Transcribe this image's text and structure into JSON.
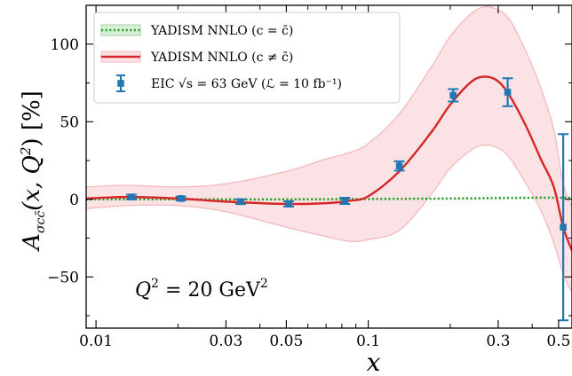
{
  "chart_data": {
    "type": "line",
    "xscale": "log",
    "xlim": [
      0.0092,
      0.56
    ],
    "ylim": [
      -83,
      125
    ],
    "xlabel": "x",
    "ylabel": "A_{σ^{cc̄}}(x, Q²) [%]",
    "ylabel_parts": {
      "main": "A",
      "sub": "σcc̄",
      "args": "(x, Q",
      "sup": "2",
      "end": ") [%]"
    },
    "x_ticks": [
      {
        "value": 0.01,
        "label": "0.01"
      },
      {
        "value": 0.03,
        "label": "0.03"
      },
      {
        "value": 0.05,
        "label": "0.05"
      },
      {
        "value": 0.1,
        "label": "0.1"
      },
      {
        "value": 0.3,
        "label": "0.3"
      },
      {
        "value": 0.5,
        "label": "0.5"
      }
    ],
    "y_ticks": [
      {
        "value": -50,
        "label": "−50"
      },
      {
        "value": 0,
        "label": "0"
      },
      {
        "value": 50,
        "label": "50"
      },
      {
        "value": 100,
        "label": "100"
      }
    ],
    "annotation": {
      "main": "Q",
      "sup": "2",
      "rest": " = 20 GeV",
      "sup2": "2"
    },
    "legend_position": "upper-left",
    "legend": [
      {
        "id": "sym",
        "label": "YADISM NNLO (c = c̄)"
      },
      {
        "id": "asym",
        "label": "YADISM NNLO (c ≠ c̄)"
      },
      {
        "id": "eic",
        "label": "EIC √s = 63 GeV (ℒ = 10 fb⁻¹)"
      }
    ],
    "series": [
      {
        "id": "sym",
        "name": "YADISM NNLO (c = c̄)",
        "style": "dotted",
        "color": "#2ca02c",
        "x": [
          0.0092,
          0.02,
          0.05,
          0.1,
          0.2,
          0.3,
          0.4,
          0.5,
          0.56
        ],
        "y": [
          0,
          0,
          0,
          0.2,
          0.5,
          0.8,
          1.0,
          1.0,
          1.0
        ]
      },
      {
        "id": "asym",
        "name": "YADISM NNLO (c ≠ c̄)",
        "style": "solid",
        "color": "#d62728",
        "x": [
          0.0092,
          0.013,
          0.02,
          0.03,
          0.05,
          0.07,
          0.085,
          0.1,
          0.13,
          0.17,
          0.2,
          0.24,
          0.27,
          0.3,
          0.33,
          0.38,
          0.43,
          0.48,
          0.52,
          0.56
        ],
        "y": [
          0.5,
          1.5,
          0.5,
          -1.5,
          -3,
          -2.5,
          -1,
          2,
          18,
          43,
          61,
          76,
          79,
          76,
          67,
          47,
          26,
          8,
          -18,
          -33
        ],
        "band_upper": [
          8,
          9,
          8,
          10,
          18,
          26,
          30,
          36,
          55,
          85,
          105,
          120,
          124,
          122,
          116,
          95,
          72,
          45,
          10,
          -5
        ],
        "band_lower": [
          -6,
          -4,
          -4,
          -8,
          -18,
          -24,
          -27,
          -26,
          -20,
          3,
          20,
          32,
          35,
          33,
          27,
          10,
          -7,
          -28,
          -48,
          -60
        ],
        "band_color": "#f4b6bb"
      },
      {
        "id": "eic",
        "name": "EIC √s = 63 GeV (ℒ = 10 fb⁻¹)",
        "style": "errorbar",
        "color": "#1f77b4",
        "x": [
          0.0135,
          0.0205,
          0.034,
          0.051,
          0.082,
          0.13,
          0.205,
          0.325,
          0.52
        ],
        "y": [
          1.5,
          0.5,
          -1.5,
          -3,
          -1,
          21.5,
          67,
          69,
          -18
        ],
        "yerr": [
          1.5,
          1.2,
          1.5,
          1.7,
          2,
          3,
          4,
          9,
          60
        ]
      }
    ]
  }
}
